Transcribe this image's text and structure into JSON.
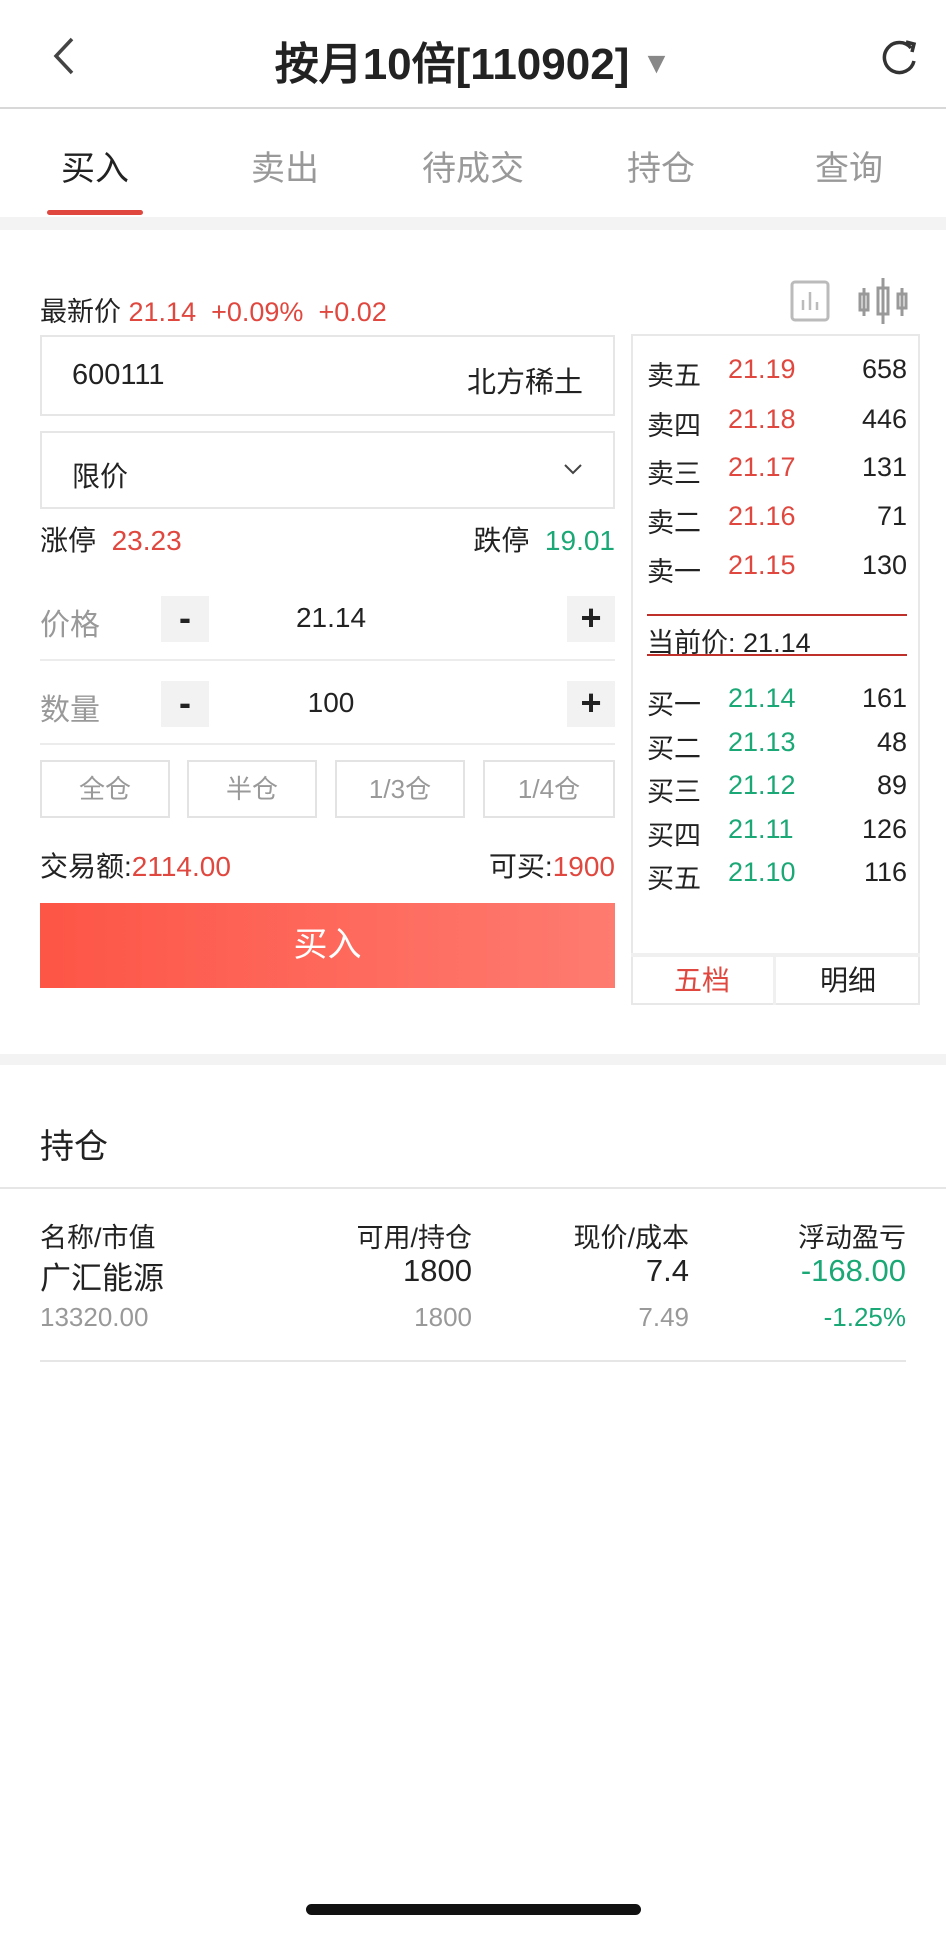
{
  "header": {
    "title": "按月10倍[110902]",
    "back_icon": "chevron-left-icon",
    "dropdown_icon": "triangle-down-icon",
    "refresh_icon": "refresh-icon"
  },
  "tabs": [
    {
      "label": "买入",
      "active": true
    },
    {
      "label": "卖出"
    },
    {
      "label": "待成交"
    },
    {
      "label": "持仓"
    },
    {
      "label": "查询"
    }
  ],
  "quote": {
    "label": "最新价",
    "price": "21.14",
    "change_pct": "+0.09%",
    "change": "+0.02"
  },
  "stock": {
    "code": "600111",
    "name": "北方稀土"
  },
  "order_type": {
    "value": "限价"
  },
  "limits": {
    "up_label": "涨停",
    "up": "23.23",
    "down_label": "跌停",
    "down": "19.01"
  },
  "price": {
    "label": "价格",
    "value": "21.14",
    "minus": "-",
    "plus": "+"
  },
  "quantity": {
    "label": "数量",
    "value": "100",
    "minus": "-",
    "plus": "+"
  },
  "position_buttons": [
    "全仓",
    "半仓",
    "1/3仓",
    "1/4仓"
  ],
  "summary": {
    "amount_label": "交易额:",
    "amount": "2114.00",
    "buyable_label": "可买:",
    "buyable": "1900"
  },
  "buy_button": "买入",
  "order_book": {
    "asks": [
      {
        "label": "卖五",
        "price": "21.19",
        "vol": "658"
      },
      {
        "label": "卖四",
        "price": "21.18",
        "vol": "446"
      },
      {
        "label": "卖三",
        "price": "21.17",
        "vol": "131"
      },
      {
        "label": "卖二",
        "price": "21.16",
        "vol": "71"
      },
      {
        "label": "卖一",
        "price": "21.15",
        "vol": "130"
      }
    ],
    "current_label": "当前价:",
    "current": "21.14",
    "bids": [
      {
        "label": "买一",
        "price": "21.14",
        "vol": "161"
      },
      {
        "label": "买二",
        "price": "21.13",
        "vol": "48"
      },
      {
        "label": "买三",
        "price": "21.12",
        "vol": "89"
      },
      {
        "label": "买四",
        "price": "21.11",
        "vol": "126"
      },
      {
        "label": "买五",
        "price": "21.10",
        "vol": "116"
      }
    ],
    "tabs": [
      {
        "label": "五档",
        "active": true
      },
      {
        "label": "明细"
      }
    ]
  },
  "holdings": {
    "title": "持仓",
    "columns": [
      "名称/市值",
      "可用/持仓",
      "现价/成本",
      "浮动盈亏"
    ],
    "rows": [
      {
        "name": "广汇能源",
        "market_value": "13320.00",
        "available": "1800",
        "position": "1800",
        "price": "7.4",
        "cost": "7.49",
        "pnl": "-168.00",
        "pnl_pct": "-1.25%"
      }
    ]
  },
  "colors": {
    "red": "#e0473e",
    "green": "#1aa876",
    "button_start": "#fd5546",
    "button_end": "#fe7b70"
  }
}
